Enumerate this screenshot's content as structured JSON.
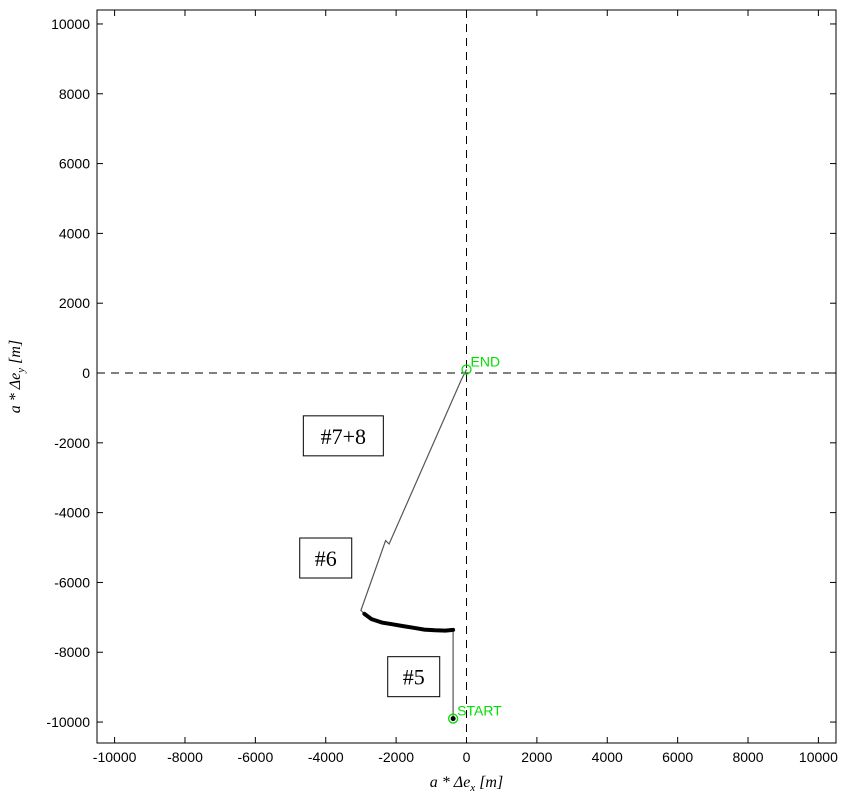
{
  "chart_data": {
    "type": "line",
    "xlabel": {
      "base": "a * Δe",
      "sub": "x",
      "unit": " [m]"
    },
    "ylabel": {
      "base": "a * Δe",
      "sub": "y",
      "unit": " [m]"
    },
    "xlim": [
      -10500,
      10500
    ],
    "ylim": [
      -10600,
      10400
    ],
    "xticks": [
      -10000,
      -8000,
      -6000,
      -4000,
      -2000,
      0,
      2000,
      4000,
      6000,
      8000,
      10000
    ],
    "yticks": [
      -10000,
      -8000,
      -6000,
      -4000,
      -2000,
      0,
      2000,
      4000,
      6000,
      8000,
      10000
    ],
    "grid": false,
    "reference_lines": {
      "x": 0,
      "y": 0,
      "style": "dashed"
    },
    "series": [
      {
        "color": "#555555",
        "x": [
          -380,
          -380,
          -600,
          -900,
          -1200,
          -1500,
          -1800,
          -2100,
          -2400,
          -2700,
          -2900,
          -3000,
          -2300,
          -2200,
          -150,
          0
        ],
        "y": [
          -9900,
          -7360,
          -7380,
          -7370,
          -7350,
          -7300,
          -7250,
          -7200,
          -7150,
          -7050,
          -6900,
          -6800,
          -4800,
          -4900,
          -200,
          100
        ]
      }
    ],
    "markers": [
      {
        "label": "START",
        "x": -380,
        "y": -9900,
        "color": "#00e000"
      },
      {
        "label": "END",
        "x": 0,
        "y": 100,
        "color": "#00e000"
      }
    ],
    "annotations": [
      {
        "text": "#7+8",
        "x": -3500,
        "y": -1800
      },
      {
        "text": "#6",
        "x": -4000,
        "y": -5300
      },
      {
        "text": "#5",
        "x": -1500,
        "y": -8700
      }
    ]
  }
}
